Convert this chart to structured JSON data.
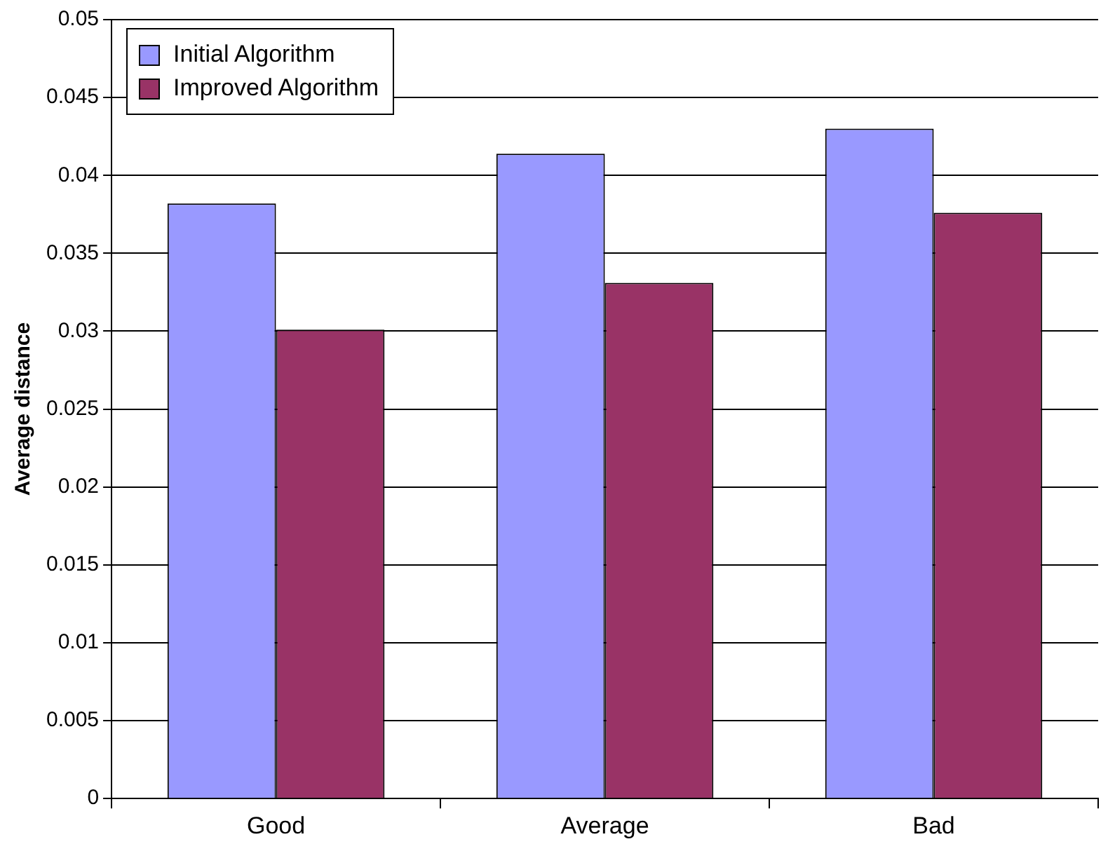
{
  "chart_data": {
    "type": "bar",
    "ylabel": "Average distance",
    "categories": [
      "Good",
      "Average",
      "Bad"
    ],
    "series": [
      {
        "name": "Initial Algorithm",
        "color": "#9999ff",
        "values": [
          0.0382,
          0.0414,
          0.043
        ]
      },
      {
        "name": "Improved Algorithm",
        "color": "#993366",
        "values": [
          0.0301,
          0.0331,
          0.0376
        ]
      }
    ],
    "ylim": [
      0,
      0.05
    ],
    "yticks": [
      0,
      0.005,
      0.01,
      0.015,
      0.02,
      0.025,
      0.03,
      0.035,
      0.04,
      0.045,
      0.05
    ],
    "grid": "y",
    "legend": "top left"
  }
}
